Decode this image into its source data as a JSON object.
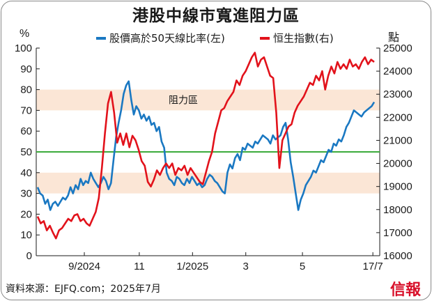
{
  "title": "港股中線市寬進阻力區",
  "source": "資料來源：EJFQ.com；2025年7月",
  "brand": "信報",
  "chart_data": {
    "type": "line",
    "left_axis_unit": "%",
    "right_axis_unit": "點",
    "left_ylim": [
      0,
      100
    ],
    "left_ticks": [
      0,
      10,
      20,
      30,
      40,
      50,
      60,
      70,
      80,
      90,
      100
    ],
    "right_ylim": [
      16000,
      25000
    ],
    "right_ticks": [
      16000,
      17000,
      18000,
      19000,
      20000,
      21000,
      22000,
      23000,
      24000,
      25000
    ],
    "x_tick_labels": [
      "9/2024",
      "11",
      "1/2025",
      "3",
      "5",
      "17/7"
    ],
    "resistance_bands": [
      {
        "label": "阻力區",
        "from": 70,
        "to": 80
      },
      {
        "label": "",
        "from": 30,
        "to": 40
      }
    ],
    "reference_line": 50,
    "colors": {
      "breadth": "#1a78c2",
      "hsi": "#e2121b",
      "reference": "#3cab3c",
      "band": "#fbe6d6"
    },
    "series": [
      {
        "name": "股價高於50天線比率(左)",
        "axis": "left",
        "values": [
          33,
          30,
          29,
          25,
          27,
          22,
          25,
          26,
          24,
          26,
          28,
          27,
          29,
          33,
          30,
          34,
          32,
          37,
          34,
          36,
          35,
          40,
          37,
          35,
          33,
          35,
          38,
          36,
          32,
          35,
          46,
          57,
          64,
          70,
          78,
          82,
          84,
          75,
          68,
          72,
          70,
          66,
          68,
          65,
          67,
          63,
          64,
          60,
          62,
          55,
          52,
          40,
          37,
          36,
          34,
          38,
          37,
          35,
          34,
          37,
          35,
          38,
          36,
          34,
          35,
          33,
          34,
          37,
          39,
          38,
          36,
          35,
          33,
          31,
          30,
          40,
          44,
          42,
          47,
          49,
          46,
          52,
          51,
          54,
          53,
          52,
          55,
          54,
          56,
          58,
          57,
          56,
          54,
          58,
          56,
          57,
          58,
          62,
          64,
          56,
          45,
          38,
          30,
          22,
          27,
          30,
          34,
          36,
          38,
          41,
          40,
          43,
          46,
          45,
          48,
          51,
          50,
          54,
          53,
          56,
          55,
          58,
          62,
          64,
          67,
          70,
          69,
          68,
          67,
          69,
          70,
          71,
          72,
          74
        ]
      },
      {
        "name": "恒生指數(右)",
        "axis": "right",
        "values": [
          17700,
          17400,
          17500,
          17100,
          17300,
          17000,
          16750,
          17100,
          17200,
          17400,
          17600,
          17500,
          17750,
          17800,
          17500,
          17600,
          17400,
          17300,
          17600,
          17900,
          18500,
          19800,
          21300,
          22600,
          23100,
          22200,
          20900,
          21300,
          20800,
          21300,
          20700,
          21200,
          21000,
          20600,
          20100,
          19900,
          19200,
          19000,
          19300,
          19700,
          19500,
          19800,
          20000,
          19800,
          20000,
          19500,
          19800,
          19700,
          19900,
          19500,
          19800,
          19600,
          19400,
          19200,
          19100,
          19600,
          20100,
          20500,
          21300,
          21800,
          22300,
          22400,
          22700,
          22900,
          23100,
          23600,
          23400,
          23800,
          24000,
          24300,
          24600,
          24800,
          24200,
          24500,
          24600,
          24200,
          23800,
          23700,
          22200,
          19800,
          21000,
          21300,
          21600,
          21700,
          22200,
          22500,
          22700,
          22900,
          23200,
          23500,
          23400,
          23800,
          23600,
          24000,
          23200,
          23800,
          24200,
          23900,
          24400,
          24100,
          24300,
          24100,
          24500,
          24200,
          24300,
          24100,
          24400,
          24600,
          24300,
          24500,
          24400
        ]
      }
    ]
  }
}
